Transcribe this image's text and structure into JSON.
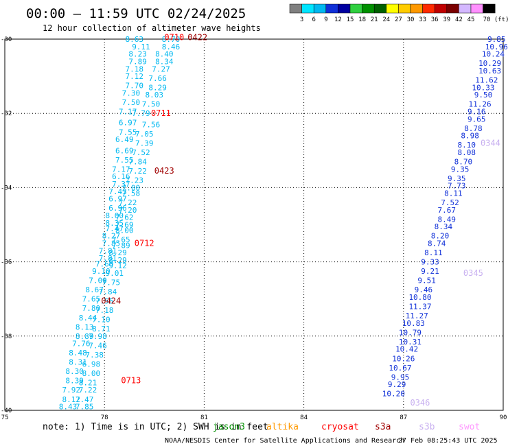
{
  "header": {
    "title": "00:00 — 11:59 UTC 02/24/2025",
    "subtitle": "12 hour collection of altimeter wave heights"
  },
  "colorbar": {
    "labels": [
      "3",
      "6",
      "9",
      "12",
      "15",
      "18",
      "21",
      "24",
      "27",
      "30",
      "33",
      "36",
      "39",
      "42",
      "45",
      "70 (ft)"
    ],
    "colors": [
      "#808080",
      "#00e5ff",
      "#00b8f0",
      "#1030d8",
      "#0000a0",
      "#30d040",
      "#009000",
      "#006000",
      "#ffff00",
      "#ffcc00",
      "#ff9900",
      "#ff2a00",
      "#c00000",
      "#7a0000",
      "#d4b8ff",
      "#ff90ff",
      "#000000"
    ]
  },
  "footer": {
    "note": "note:  1) Time is in UTC;  2) SWH is in feet",
    "satellites": [
      {
        "name": "jason3",
        "color": "#009000"
      },
      {
        "name": "altika",
        "color": "#ff9900"
      },
      {
        "name": "cryosat",
        "color": "#ff0000"
      },
      {
        "name": "s3a",
        "color": "#a00000"
      },
      {
        "name": "s3b",
        "color": "#c8b0f0"
      },
      {
        "name": "swot",
        "color": "#ff99ff"
      }
    ],
    "credit": "NOAA/NESDIS Center for Satellite Applications and Research",
    "timestamp": "27 Feb 08:25:43 UTC 2025"
  },
  "chart_data": {
    "type": "scatter",
    "title": "00:00 — 11:59 UTC 02/24/2025",
    "xlabel": "",
    "ylabel": "",
    "xlim": [
      75,
      90
    ],
    "ylim": [
      -40,
      -30
    ],
    "xticks": [
      "75",
      "78",
      "81",
      "84",
      "87",
      "90"
    ],
    "yticks": [
      "-30",
      "-32",
      "-34",
      "-36",
      "-38",
      "-40"
    ],
    "grid": true,
    "series": [
      {
        "color": "#00b8f0",
        "points": [
          {
            "lon": 78.9,
            "lat": -30.0,
            "swh": "8.63"
          },
          {
            "lon": 80.0,
            "lat": -30.0,
            "swh": "8.70"
          },
          {
            "lon": 79.1,
            "lat": -30.2,
            "swh": "9.11"
          },
          {
            "lon": 80.0,
            "lat": -30.2,
            "swh": "8.46"
          },
          {
            "lon": 79.0,
            "lat": -30.4,
            "swh": "8.23"
          },
          {
            "lon": 79.8,
            "lat": -30.4,
            "swh": "8.40"
          },
          {
            "lon": 79.0,
            "lat": -30.6,
            "swh": "7.89"
          },
          {
            "lon": 79.8,
            "lat": -30.6,
            "swh": "8.34"
          },
          {
            "lon": 78.9,
            "lat": -30.8,
            "swh": "7.18"
          },
          {
            "lon": 79.7,
            "lat": -30.8,
            "swh": "7.27"
          },
          {
            "lon": 78.9,
            "lat": -31.0,
            "swh": "7.12"
          },
          {
            "lon": 79.6,
            "lat": -31.05,
            "swh": "7.66"
          },
          {
            "lon": 78.9,
            "lat": -31.25,
            "swh": "7.70"
          },
          {
            "lon": 79.6,
            "lat": -31.3,
            "swh": "8.29"
          },
          {
            "lon": 78.8,
            "lat": -31.45,
            "swh": "7.30"
          },
          {
            "lon": 79.5,
            "lat": -31.5,
            "swh": "8.03"
          },
          {
            "lon": 78.8,
            "lat": -31.7,
            "swh": "7.50"
          },
          {
            "lon": 79.4,
            "lat": -31.75,
            "swh": "7.50"
          },
          {
            "lon": 78.7,
            "lat": -31.95,
            "swh": "7.17"
          },
          {
            "lon": 79.1,
            "lat": -32.0,
            "swh": "7.79"
          },
          {
            "lon": 78.7,
            "lat": -32.25,
            "swh": "6.97"
          },
          {
            "lon": 79.4,
            "lat": -32.3,
            "swh": "7.56"
          },
          {
            "lon": 78.7,
            "lat": -32.5,
            "swh": "7.55"
          },
          {
            "lon": 79.2,
            "lat": -32.55,
            "swh": "7.05"
          },
          {
            "lon": 78.6,
            "lat": -32.7,
            "swh": "6.49"
          },
          {
            "lon": 79.2,
            "lat": -32.8,
            "swh": "7.39"
          },
          {
            "lon": 78.6,
            "lat": -33.0,
            "swh": "6.69"
          },
          {
            "lon": 79.1,
            "lat": -33.05,
            "swh": "7.52"
          },
          {
            "lon": 78.6,
            "lat": -33.25,
            "swh": "7.55"
          },
          {
            "lon": 79.0,
            "lat": -33.3,
            "swh": "7.84"
          },
          {
            "lon": 78.5,
            "lat": -33.5,
            "swh": "7.17"
          },
          {
            "lon": 79.0,
            "lat": -33.55,
            "swh": "7.22"
          },
          {
            "lon": 78.5,
            "lat": -33.7,
            "swh": "6.16"
          },
          {
            "lon": 78.9,
            "lat": -33.8,
            "swh": "7.23"
          },
          {
            "lon": 78.5,
            "lat": -33.9,
            "swh": "7.37"
          },
          {
            "lon": 78.8,
            "lat": -34.0,
            "swh": "7.00"
          },
          {
            "lon": 78.4,
            "lat": -34.1,
            "swh": "7.43"
          },
          {
            "lon": 78.8,
            "lat": -34.15,
            "swh": "7.58"
          },
          {
            "lon": 78.4,
            "lat": -34.3,
            "swh": "6.97"
          },
          {
            "lon": 78.7,
            "lat": -34.4,
            "swh": "7.22"
          },
          {
            "lon": 78.4,
            "lat": -34.55,
            "swh": "6.96"
          },
          {
            "lon": 78.7,
            "lat": -34.6,
            "swh": "7.20"
          },
          {
            "lon": 78.3,
            "lat": -34.75,
            "swh": "8.00"
          },
          {
            "lon": 78.6,
            "lat": -34.8,
            "swh": "7.62"
          },
          {
            "lon": 78.3,
            "lat": -34.95,
            "swh": "8.35"
          },
          {
            "lon": 78.6,
            "lat": -35.0,
            "swh": "7.69"
          },
          {
            "lon": 78.3,
            "lat": -35.1,
            "swh": "7.47"
          },
          {
            "lon": 78.6,
            "lat": -35.15,
            "swh": "8.00"
          },
          {
            "lon": 78.2,
            "lat": -35.3,
            "swh": "8.27"
          },
          {
            "lon": 78.5,
            "lat": -35.4,
            "swh": "7.65"
          },
          {
            "lon": 78.2,
            "lat": -35.5,
            "swh": "7.85"
          },
          {
            "lon": 78.5,
            "lat": -35.55,
            "swh": "7.89"
          },
          {
            "lon": 78.1,
            "lat": -35.7,
            "swh": "7.81"
          },
          {
            "lon": 78.4,
            "lat": -35.75,
            "swh": "8.29"
          },
          {
            "lon": 78.1,
            "lat": -35.9,
            "swh": "7.81"
          },
          {
            "lon": 78.4,
            "lat": -35.95,
            "swh": "8.29"
          },
          {
            "lon": 78.0,
            "lat": -36.05,
            "swh": "7.60"
          },
          {
            "lon": 78.4,
            "lat": -36.1,
            "swh": "9.12"
          },
          {
            "lon": 77.9,
            "lat": -36.25,
            "swh": "9.10"
          },
          {
            "lon": 78.3,
            "lat": -36.3,
            "swh": "9.01"
          },
          {
            "lon": 77.8,
            "lat": -36.5,
            "swh": "7.00"
          },
          {
            "lon": 78.2,
            "lat": -36.55,
            "swh": "7.75"
          },
          {
            "lon": 77.7,
            "lat": -36.75,
            "swh": "8.67"
          },
          {
            "lon": 78.1,
            "lat": -36.8,
            "swh": "7.84"
          },
          {
            "lon": 77.6,
            "lat": -37.0,
            "swh": "7.65"
          },
          {
            "lon": 78.0,
            "lat": -37.05,
            "swh": "7.55"
          },
          {
            "lon": 77.6,
            "lat": -37.25,
            "swh": "7.80"
          },
          {
            "lon": 78.0,
            "lat": -37.3,
            "swh": "7.18"
          },
          {
            "lon": 77.5,
            "lat": -37.5,
            "swh": "8.44"
          },
          {
            "lon": 77.9,
            "lat": -37.55,
            "swh": "7.10"
          },
          {
            "lon": 77.4,
            "lat": -37.75,
            "swh": "8.13"
          },
          {
            "lon": 77.9,
            "lat": -37.8,
            "swh": "8.71"
          },
          {
            "lon": 77.4,
            "lat": -38.0,
            "swh": "8.89"
          },
          {
            "lon": 77.8,
            "lat": -38.0,
            "swh": "7.98"
          },
          {
            "lon": 77.3,
            "lat": -38.2,
            "swh": "7.76"
          },
          {
            "lon": 77.8,
            "lat": -38.25,
            "swh": "7.46"
          },
          {
            "lon": 77.2,
            "lat": -38.45,
            "swh": "8.48"
          },
          {
            "lon": 77.7,
            "lat": -38.5,
            "swh": "7.38"
          },
          {
            "lon": 77.2,
            "lat": -38.7,
            "swh": "8.31"
          },
          {
            "lon": 77.6,
            "lat": -38.75,
            "swh": "6.98"
          },
          {
            "lon": 77.1,
            "lat": -38.95,
            "swh": "8.30"
          },
          {
            "lon": 77.6,
            "lat": -39.0,
            "swh": "8.00"
          },
          {
            "lon": 77.1,
            "lat": -39.2,
            "swh": "8.39"
          },
          {
            "lon": 77.5,
            "lat": -39.25,
            "swh": "8.21"
          },
          {
            "lon": 77.0,
            "lat": -39.45,
            "swh": "7.92"
          },
          {
            "lon": 77.5,
            "lat": -39.45,
            "swh": "7.22"
          },
          {
            "lon": 77.0,
            "lat": -39.7,
            "swh": "8.12"
          },
          {
            "lon": 77.4,
            "lat": -39.7,
            "swh": "7.47"
          },
          {
            "lon": 76.9,
            "lat": -39.9,
            "swh": "8.43"
          },
          {
            "lon": 77.4,
            "lat": -39.9,
            "swh": "7.85"
          }
        ]
      },
      {
        "color": "#1030d8",
        "points": [
          {
            "lon": 89.8,
            "lat": -30.0,
            "swh": "9.85"
          },
          {
            "lon": 89.8,
            "lat": -30.2,
            "swh": "10.96"
          },
          {
            "lon": 89.7,
            "lat": -30.4,
            "swh": "10.24"
          },
          {
            "lon": 89.6,
            "lat": -30.65,
            "swh": "10.29"
          },
          {
            "lon": 89.6,
            "lat": -30.85,
            "swh": "10.63"
          },
          {
            "lon": 89.5,
            "lat": -31.1,
            "swh": "11.62"
          },
          {
            "lon": 89.4,
            "lat": -31.3,
            "swh": "10.33"
          },
          {
            "lon": 89.4,
            "lat": -31.5,
            "swh": "9.50"
          },
          {
            "lon": 89.3,
            "lat": -31.75,
            "swh": "11.26"
          },
          {
            "lon": 89.2,
            "lat": -31.95,
            "swh": "9.16"
          },
          {
            "lon": 89.2,
            "lat": -32.15,
            "swh": "9.65"
          },
          {
            "lon": 89.1,
            "lat": -32.4,
            "swh": "8.78"
          },
          {
            "lon": 89.0,
            "lat": -32.6,
            "swh": "8.98"
          },
          {
            "lon": 88.9,
            "lat": -32.85,
            "swh": "8.10"
          },
          {
            "lon": 88.9,
            "lat": -33.05,
            "swh": "8.08"
          },
          {
            "lon": 88.8,
            "lat": -33.3,
            "swh": "8.70"
          },
          {
            "lon": 88.7,
            "lat": -33.5,
            "swh": "9.35"
          },
          {
            "lon": 88.6,
            "lat": -33.75,
            "swh": "9.35"
          },
          {
            "lon": 88.6,
            "lat": -33.95,
            "swh": "7.73"
          },
          {
            "lon": 88.5,
            "lat": -34.15,
            "swh": "8.11"
          },
          {
            "lon": 88.4,
            "lat": -34.4,
            "swh": "7.52"
          },
          {
            "lon": 88.3,
            "lat": -34.6,
            "swh": "7.67"
          },
          {
            "lon": 88.3,
            "lat": -34.85,
            "swh": "8.49"
          },
          {
            "lon": 88.2,
            "lat": -35.05,
            "swh": "8.34"
          },
          {
            "lon": 88.1,
            "lat": -35.3,
            "swh": "8.20"
          },
          {
            "lon": 88.0,
            "lat": -35.5,
            "swh": "8.74"
          },
          {
            "lon": 87.9,
            "lat": -35.75,
            "swh": "8.11"
          },
          {
            "lon": 87.8,
            "lat": -36.0,
            "swh": "9.33"
          },
          {
            "lon": 87.8,
            "lat": -36.25,
            "swh": "9.21"
          },
          {
            "lon": 87.7,
            "lat": -36.5,
            "swh": "9.51"
          },
          {
            "lon": 87.6,
            "lat": -36.75,
            "swh": "9.46"
          },
          {
            "lon": 87.5,
            "lat": -36.95,
            "swh": "10.80"
          },
          {
            "lon": 87.5,
            "lat": -37.2,
            "swh": "11.37"
          },
          {
            "lon": 87.4,
            "lat": -37.45,
            "swh": "11.27"
          },
          {
            "lon": 87.3,
            "lat": -37.65,
            "swh": "10.83"
          },
          {
            "lon": 87.2,
            "lat": -37.9,
            "swh": "10.79"
          },
          {
            "lon": 87.2,
            "lat": -38.15,
            "swh": "10.31"
          },
          {
            "lon": 87.1,
            "lat": -38.35,
            "swh": "10.42"
          },
          {
            "lon": 87.0,
            "lat": -38.6,
            "swh": "10.26"
          },
          {
            "lon": 86.9,
            "lat": -38.85,
            "swh": "10.67"
          },
          {
            "lon": 86.9,
            "lat": -39.1,
            "swh": "9.95"
          },
          {
            "lon": 86.8,
            "lat": -39.3,
            "swh": "9.29"
          },
          {
            "lon": 86.7,
            "lat": -39.55,
            "swh": "10.20"
          }
        ]
      }
    ],
    "pass_labels": [
      {
        "text": "0710",
        "lon": 79.8,
        "lat": -29.95,
        "color": "#ff0000"
      },
      {
        "text": "0422",
        "lon": 80.5,
        "lat": -29.95,
        "color": "#a00000"
      },
      {
        "text": "0711",
        "lon": 79.4,
        "lat": -32.0,
        "color": "#ff0000"
      },
      {
        "text": "0423",
        "lon": 79.5,
        "lat": -33.55,
        "color": "#a00000"
      },
      {
        "text": "0712",
        "lon": 78.9,
        "lat": -35.5,
        "color": "#ff0000"
      },
      {
        "text": "0424",
        "lon": 77.9,
        "lat": -37.05,
        "color": "#a00000"
      },
      {
        "text": "0713",
        "lon": 78.5,
        "lat": -39.2,
        "color": "#ff0000"
      },
      {
        "text": "0344",
        "lon": 89.7,
        "lat": -32.8,
        "color": "#c8b0f0"
      },
      {
        "text": "0345",
        "lon": 88.8,
        "lat": -36.3,
        "color": "#c8b0f0"
      },
      {
        "text": "0346",
        "lon": 87.2,
        "lat": -39.8,
        "color": "#c8b0f0"
      }
    ]
  }
}
